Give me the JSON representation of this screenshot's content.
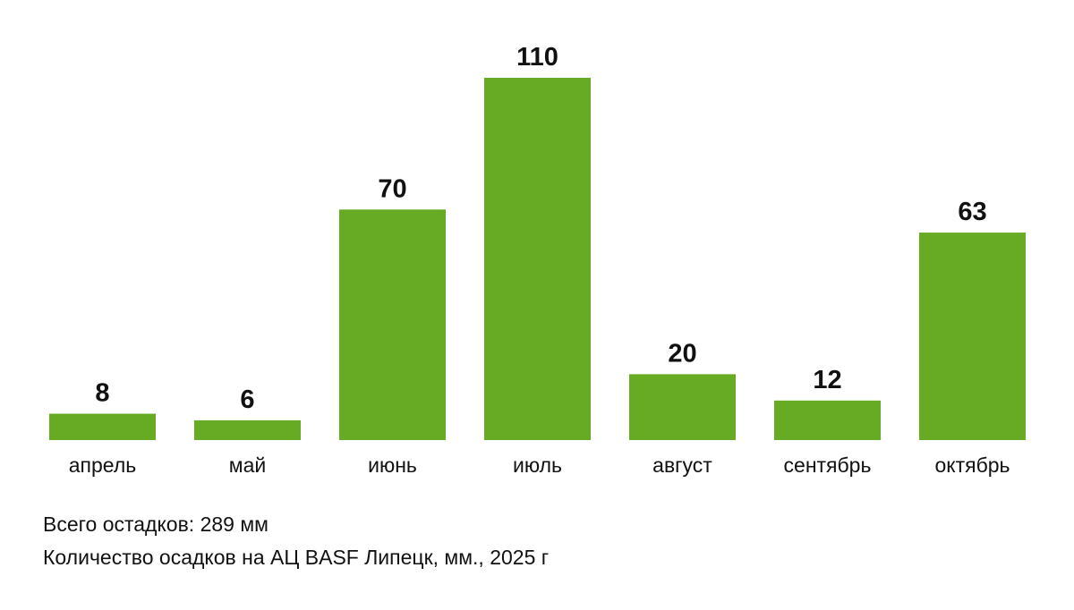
{
  "chart_data": {
    "type": "bar",
    "categories": [
      "апрель",
      "май",
      "июнь",
      "июль",
      "август",
      "сентябрь",
      "октябрь"
    ],
    "values": [
      8,
      6,
      70,
      110,
      20,
      12,
      63
    ],
    "data_labels": [
      "8",
      "6",
      "70",
      "110",
      "20",
      "12",
      "63"
    ],
    "ylim": [
      0,
      110
    ],
    "grid": false,
    "legend": "none",
    "bar_color": "#66ab23",
    "text_color": "#111111"
  },
  "summary": {
    "total": "Всего остадков: 289 мм",
    "caption": "Количество осадков на АЦ BASF Липецк, мм., 2025 г"
  }
}
